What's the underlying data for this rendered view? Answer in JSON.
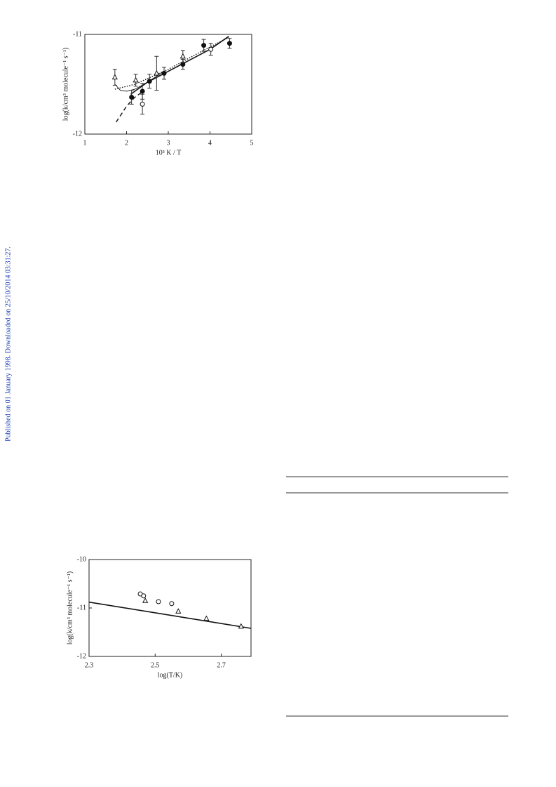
{
  "side_note": "Published on 01 January 1998. Downloaded on 25/10/2014 03:31:27.",
  "chart_data": [
    {
      "type": "scatter",
      "xlabel": "10³ K / T",
      "ylabel": "log(k/cm³ molecule⁻¹ s⁻¹)",
      "xlim": [
        1,
        5
      ],
      "ylim": [
        -12,
        -11
      ],
      "xticks": [
        1,
        2,
        3,
        4,
        5
      ],
      "yticks": [
        -12,
        -11
      ],
      "series": [
        {
          "marker": "filled-circle",
          "x": [
            2.12,
            2.38,
            2.55,
            2.9,
            3.35,
            3.85,
            4.47
          ],
          "values": [
            -11.63,
            -11.57,
            -11.47,
            -11.39,
            -11.3,
            -11.11,
            -11.09
          ],
          "errors": [
            0.07,
            0.08,
            0.07,
            0.06,
            0.05,
            0.06,
            0.05
          ]
        },
        {
          "marker": "open-triangle",
          "x": [
            1.72,
            2.22,
            2.72,
            3.35
          ],
          "values": [
            -11.43,
            -11.46,
            -11.39,
            -11.22
          ],
          "errors": [
            0.08,
            0.06,
            0.17,
            0.06
          ]
        },
        {
          "marker": "open-circle",
          "x": [
            2.38,
            4.02
          ],
          "values": [
            -11.7,
            -11.15
          ],
          "errors": [
            0.1,
            0.06
          ]
        }
      ],
      "lines": [
        {
          "style": "solid",
          "x": [
            2.1,
            2.5,
            3.0,
            3.5,
            4.0,
            4.45
          ],
          "values": [
            -11.6,
            -11.48,
            -11.37,
            -11.26,
            -11.15,
            -11.02
          ]
        },
        {
          "style": "dashed",
          "x": [
            1.75,
            2.0,
            2.2,
            2.4
          ],
          "values": [
            -11.88,
            -11.72,
            -11.63,
            -11.57
          ]
        },
        {
          "style": "dotted",
          "x": [
            1.72,
            2.2,
            3.0,
            3.8,
            4.45
          ],
          "values": [
            -11.55,
            -11.5,
            -11.35,
            -11.17,
            -11.03
          ]
        },
        {
          "style": "thin",
          "x": [
            1.72,
            1.85,
            2.0,
            2.2,
            2.5,
            2.9
          ],
          "values": [
            -11.5,
            -11.56,
            -11.57,
            -11.55,
            -11.48,
            -11.37
          ]
        }
      ]
    },
    {
      "type": "scatter",
      "xlabel": "log(T/K)",
      "ylabel": "log(k/cm³ molecule⁻¹ s⁻¹)",
      "xlim": [
        2.3,
        2.79
      ],
      "ylim": [
        -12,
        -10
      ],
      "xticks": [
        2.3,
        2.5,
        2.7
      ],
      "yticks": [
        -12,
        -11,
        -10
      ],
      "series": [
        {
          "marker": "open-circle",
          "x": [
            2.455,
            2.465,
            2.51,
            2.55
          ],
          "values": [
            -10.71,
            -10.75,
            -10.87,
            -10.91
          ]
        },
        {
          "marker": "open-triangle",
          "x": [
            2.47,
            2.57,
            2.655,
            2.76
          ],
          "values": [
            -10.85,
            -11.07,
            -11.22,
            -11.38
          ]
        }
      ],
      "lines": [
        {
          "style": "solid",
          "x": [
            2.3,
            2.79
          ],
          "values": [
            -10.88,
            -11.42
          ]
        }
      ]
    }
  ]
}
